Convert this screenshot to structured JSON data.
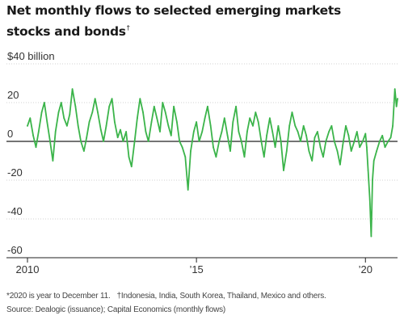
{
  "header": {
    "title_line1": "Net monthly flows to selected emerging markets",
    "title_line2": "stocks and bonds",
    "title_mark": "†"
  },
  "footnotes": {
    "line1_a": "*2020 is year to December 11.",
    "line1_b": "†Indonesia, India, South Korea, Thailand, Mexico and others.",
    "line2": "Source: Dealogic (issuance); Capital Economics (monthly flows)"
  },
  "chart_data": {
    "type": "line",
    "title": "Net monthly flows to selected emerging markets stocks and bonds†",
    "ylabel": "$40 billion",
    "y_unit": "billion",
    "ylim": [
      -60,
      40
    ],
    "yticks": [
      40,
      20,
      0,
      -20,
      -40,
      -60
    ],
    "ytick_labels": [
      "$40 billion",
      "20",
      "0",
      "-20",
      "-40",
      "-60"
    ],
    "xlim": [
      2010,
      2020.95
    ],
    "xticks": [
      2010,
      2015,
      2020
    ],
    "xtick_labels": [
      "2010",
      "’15",
      "’20"
    ],
    "grid": "horizontal",
    "zero_line": true,
    "colors": {
      "line": "#3bb44a",
      "zero_line": "#222222",
      "grid": "#d0d0d0"
    },
    "series": [
      {
        "values": [
          [
            2010.0,
            8
          ],
          [
            2010.08,
            12
          ],
          [
            2010.17,
            3
          ],
          [
            2010.25,
            -3
          ],
          [
            2010.33,
            5
          ],
          [
            2010.42,
            15
          ],
          [
            2010.5,
            20
          ],
          [
            2010.58,
            10
          ],
          [
            2010.67,
            0
          ],
          [
            2010.75,
            -10
          ],
          [
            2010.83,
            5
          ],
          [
            2010.92,
            15
          ],
          [
            2011.0,
            20
          ],
          [
            2011.08,
            12
          ],
          [
            2011.17,
            8
          ],
          [
            2011.25,
            14
          ],
          [
            2011.33,
            27
          ],
          [
            2011.42,
            18
          ],
          [
            2011.5,
            8
          ],
          [
            2011.58,
            0
          ],
          [
            2011.67,
            -5
          ],
          [
            2011.75,
            2
          ],
          [
            2011.83,
            10
          ],
          [
            2011.92,
            15
          ],
          [
            2012.0,
            22
          ],
          [
            2012.08,
            15
          ],
          [
            2012.17,
            6
          ],
          [
            2012.25,
            0
          ],
          [
            2012.33,
            8
          ],
          [
            2012.42,
            18
          ],
          [
            2012.5,
            22
          ],
          [
            2012.58,
            10
          ],
          [
            2012.67,
            2
          ],
          [
            2012.75,
            6
          ],
          [
            2012.83,
            0
          ],
          [
            2012.92,
            5
          ],
          [
            2013.0,
            -8
          ],
          [
            2013.08,
            -13
          ],
          [
            2013.17,
            0
          ],
          [
            2013.25,
            12
          ],
          [
            2013.33,
            22
          ],
          [
            2013.42,
            15
          ],
          [
            2013.5,
            5
          ],
          [
            2013.58,
            0
          ],
          [
            2013.67,
            10
          ],
          [
            2013.75,
            18
          ],
          [
            2013.83,
            12
          ],
          [
            2013.92,
            5
          ],
          [
            2014.0,
            20
          ],
          [
            2014.08,
            15
          ],
          [
            2014.17,
            8
          ],
          [
            2014.25,
            3
          ],
          [
            2014.33,
            18
          ],
          [
            2014.42,
            10
          ],
          [
            2014.5,
            0
          ],
          [
            2014.58,
            -3
          ],
          [
            2014.67,
            -8
          ],
          [
            2014.75,
            -25
          ],
          [
            2014.83,
            -5
          ],
          [
            2014.92,
            5
          ],
          [
            2015.0,
            10
          ],
          [
            2015.08,
            0
          ],
          [
            2015.17,
            5
          ],
          [
            2015.25,
            12
          ],
          [
            2015.33,
            18
          ],
          [
            2015.42,
            8
          ],
          [
            2015.5,
            -3
          ],
          [
            2015.58,
            -8
          ],
          [
            2015.67,
            0
          ],
          [
            2015.75,
            5
          ],
          [
            2015.83,
            12
          ],
          [
            2015.92,
            3
          ],
          [
            2016.0,
            -5
          ],
          [
            2016.08,
            10
          ],
          [
            2016.17,
            18
          ],
          [
            2016.25,
            5
          ],
          [
            2016.33,
            0
          ],
          [
            2016.42,
            -8
          ],
          [
            2016.5,
            5
          ],
          [
            2016.58,
            12
          ],
          [
            2016.67,
            8
          ],
          [
            2016.75,
            15
          ],
          [
            2016.83,
            10
          ],
          [
            2016.92,
            0
          ],
          [
            2017.0,
            -8
          ],
          [
            2017.08,
            3
          ],
          [
            2017.17,
            12
          ],
          [
            2017.25,
            5
          ],
          [
            2017.33,
            -3
          ],
          [
            2017.42,
            8
          ],
          [
            2017.5,
            0
          ],
          [
            2017.58,
            -15
          ],
          [
            2017.67,
            -5
          ],
          [
            2017.75,
            8
          ],
          [
            2017.83,
            15
          ],
          [
            2017.92,
            8
          ],
          [
            2018.0,
            5
          ],
          [
            2018.08,
            0
          ],
          [
            2018.17,
            8
          ],
          [
            2018.25,
            3
          ],
          [
            2018.33,
            -5
          ],
          [
            2018.42,
            -10
          ],
          [
            2018.5,
            2
          ],
          [
            2018.58,
            5
          ],
          [
            2018.67,
            -3
          ],
          [
            2018.75,
            -8
          ],
          [
            2018.83,
            0
          ],
          [
            2018.92,
            5
          ],
          [
            2019.0,
            8
          ],
          [
            2019.08,
            0
          ],
          [
            2019.17,
            -5
          ],
          [
            2019.25,
            -12
          ],
          [
            2019.33,
            -2
          ],
          [
            2019.42,
            8
          ],
          [
            2019.5,
            3
          ],
          [
            2019.58,
            -5
          ],
          [
            2019.67,
            0
          ],
          [
            2019.75,
            5
          ],
          [
            2019.83,
            -3
          ],
          [
            2019.92,
            0
          ],
          [
            2020.0,
            4
          ],
          [
            2020.04,
            -3
          ],
          [
            2020.08,
            -15
          ],
          [
            2020.13,
            -30
          ],
          [
            2020.17,
            -49
          ],
          [
            2020.21,
            -20
          ],
          [
            2020.25,
            -10
          ],
          [
            2020.33,
            -5
          ],
          [
            2020.42,
            0
          ],
          [
            2020.5,
            3
          ],
          [
            2020.58,
            -3
          ],
          [
            2020.67,
            0
          ],
          [
            2020.75,
            2
          ],
          [
            2020.81,
            8
          ],
          [
            2020.87,
            27
          ],
          [
            2020.92,
            18
          ],
          [
            2020.95,
            22
          ]
        ]
      }
    ]
  }
}
